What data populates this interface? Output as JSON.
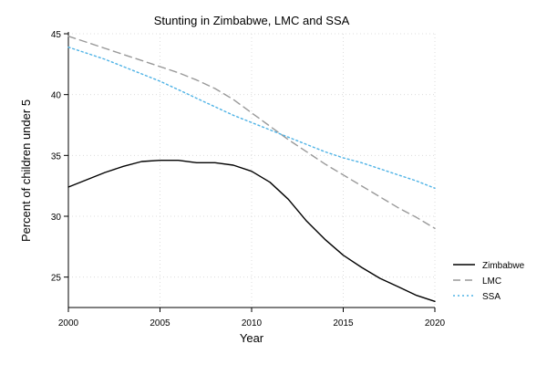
{
  "chart_data": {
    "type": "line",
    "title": "Stunting in Zimbabwe, LMC and SSA",
    "xlabel": "Year",
    "ylabel": "Percent of children under 5",
    "xlim": [
      2000,
      2020
    ],
    "ylim": [
      22.5,
      45
    ],
    "x_ticks": [
      2000,
      2005,
      2010,
      2015,
      2020
    ],
    "y_ticks": [
      25,
      30,
      35,
      40,
      45
    ],
    "grid": true,
    "legend_position": "right",
    "x": [
      2000,
      2001,
      2002,
      2003,
      2004,
      2005,
      2006,
      2007,
      2008,
      2009,
      2010,
      2011,
      2012,
      2013,
      2014,
      2015,
      2016,
      2017,
      2018,
      2019,
      2020
    ],
    "series": [
      {
        "name": "Zimbabwe",
        "color": "#000000",
        "style": "solid",
        "values": [
          32.4,
          33.0,
          33.6,
          34.1,
          34.5,
          34.6,
          34.6,
          34.4,
          34.4,
          34.2,
          33.7,
          32.8,
          31.4,
          29.6,
          28.1,
          26.8,
          25.8,
          24.9,
          24.2,
          23.5,
          23.0
        ]
      },
      {
        "name": "LMC",
        "color": "#999999",
        "style": "dashed",
        "values": [
          44.8,
          44.3,
          43.8,
          43.3,
          42.8,
          42.3,
          41.8,
          41.2,
          40.5,
          39.6,
          38.5,
          37.4,
          36.3,
          35.3,
          34.3,
          33.4,
          32.5,
          31.6,
          30.7,
          29.9,
          29.0
        ]
      },
      {
        "name": "SSA",
        "color": "#4fb3e6",
        "style": "dotted",
        "values": [
          43.9,
          43.4,
          42.9,
          42.3,
          41.7,
          41.1,
          40.4,
          39.7,
          39.0,
          38.3,
          37.7,
          37.1,
          36.5,
          35.9,
          35.3,
          34.8,
          34.4,
          33.9,
          33.4,
          32.9,
          32.3
        ]
      }
    ]
  }
}
